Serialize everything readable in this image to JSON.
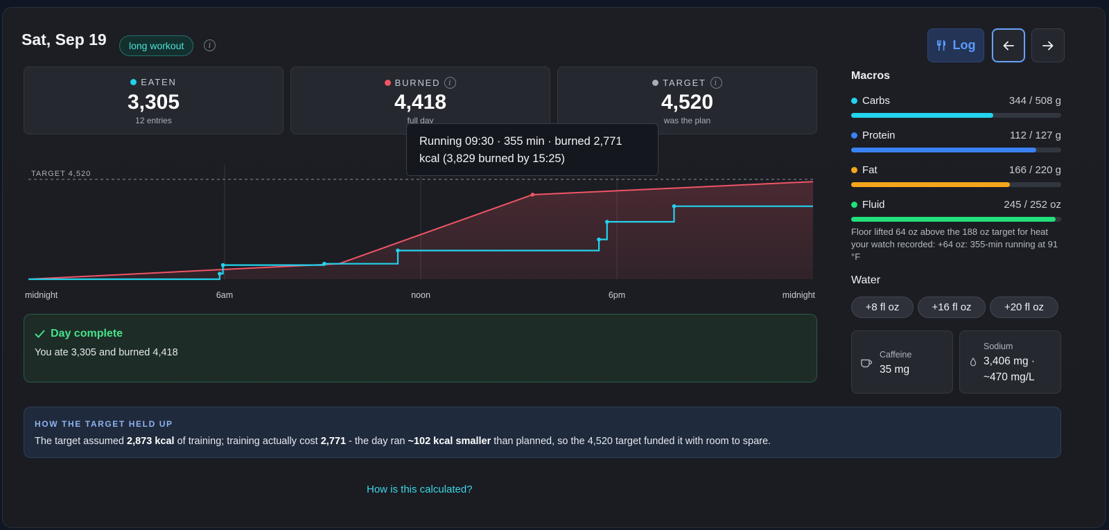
{
  "header": {
    "date": "Sat, Sep 19",
    "badge": "long workout",
    "log_label": "Log",
    "prev_icon": "arrow-left-icon",
    "next_icon": "arrow-right-icon"
  },
  "stats": {
    "eaten": {
      "label": "EATEN",
      "value": "3,305",
      "sub": "12 entries",
      "color": "#22d3ee"
    },
    "burned": {
      "label": "BURNED",
      "value": "4,418",
      "sub": "full day",
      "color": "#f05565"
    },
    "target": {
      "label": "TARGET",
      "value": "4,520",
      "sub": "was the plan",
      "color": "#a8adb5"
    }
  },
  "tooltip": "Running 09:30 · 355 min · burned 2,771 kcal (3,829 burned by 15:25)",
  "chart_data": {
    "type": "line",
    "target_label": "TARGET 4,520",
    "target": 4520,
    "x_tick_labels": [
      "midnight",
      "6am",
      "noon",
      "6pm",
      "midnight"
    ],
    "x_range_hours": [
      0,
      24
    ],
    "y_range": [
      0,
      4800
    ],
    "series": [
      {
        "color": "#f05565",
        "points": [
          [
            0,
            0
          ],
          [
            9.5,
            700
          ],
          [
            15.42,
            3829
          ],
          [
            24,
            4418
          ]
        ]
      },
      {
        "color": "#22d3ee",
        "step": true,
        "points": [
          [
            0,
            0
          ],
          [
            5.85,
            250
          ],
          [
            5.95,
            640
          ],
          [
            9.05,
            700
          ],
          [
            11.3,
            1300
          ],
          [
            17.45,
            1800
          ],
          [
            17.7,
            2600
          ],
          [
            19.75,
            3305
          ],
          [
            24,
            3305
          ]
        ],
        "markers": [
          [
            5.85,
            250
          ],
          [
            5.95,
            640
          ],
          [
            9.05,
            700
          ],
          [
            11.3,
            1300
          ],
          [
            17.45,
            1800
          ],
          [
            17.7,
            2600
          ],
          [
            19.75,
            3305
          ]
        ]
      }
    ]
  },
  "complete": {
    "title": "Day complete",
    "message": "You ate 3,305 and burned 4,418"
  },
  "macros": {
    "heading": "Macros",
    "items": [
      {
        "name": "Carbs",
        "amount": "344 / 508 g",
        "fraction": 0.677,
        "color": "#22d3ee"
      },
      {
        "name": "Protein",
        "amount": "112 / 127 g",
        "fraction": 0.882,
        "color": "#3b82f6"
      },
      {
        "name": "Fat",
        "amount": "166 / 220 g",
        "fraction": 0.755,
        "color": "#f5a51c"
      },
      {
        "name": "Fluid",
        "amount": "245 / 252 oz",
        "fraction": 0.972,
        "color": "#22e07a"
      }
    ],
    "fluid_note": "Floor lifted 64 oz above the 188 oz target for heat your watch recorded: +64 oz: 355-min running at 91 °F"
  },
  "water": {
    "heading": "Water",
    "buttons": [
      "+8 fl oz",
      "+16 fl oz",
      "+20 fl oz"
    ]
  },
  "caffeine": {
    "label": "Caffeine",
    "value": "35 mg",
    "icon": "coffee-cup-icon"
  },
  "sodium": {
    "label": "Sodium",
    "value_line1": "3,406 mg ·",
    "value_line2": "~470 mg/L",
    "icon": "droplet-icon"
  },
  "held": {
    "heading": "HOW THE TARGET HELD UP",
    "p1": "The target assumed ",
    "b1": "2,873 kcal",
    "p2": " of training; training actually cost ",
    "b2": "2,771",
    "p3": " - the day ran ",
    "b3": "~102 kcal smaller",
    "p4": " than planned, so the 4,520 target funded it with room to spare."
  },
  "how_link": "How is this calculated?"
}
